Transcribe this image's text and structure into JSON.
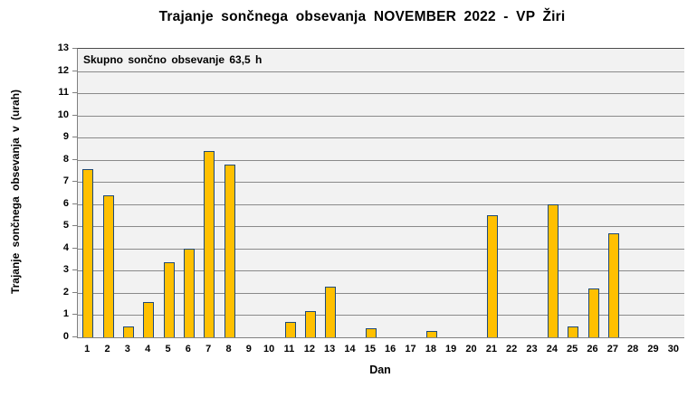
{
  "chart_data": {
    "type": "bar",
    "title": "Trajanje sončnega obsevanja NOVEMBER 2022 - VP Žiri",
    "annotation": "Skupno sončno obsevanje 63,5 h",
    "xlabel": "Dan",
    "ylabel": "Trajanje sončnega obsevanja v (urah)",
    "categories": [
      "1",
      "2",
      "3",
      "4",
      "5",
      "6",
      "7",
      "8",
      "9",
      "10",
      "11",
      "12",
      "13",
      "14",
      "15",
      "16",
      "17",
      "18",
      "19",
      "20",
      "21",
      "22",
      "23",
      "24",
      "25",
      "26",
      "27",
      "28",
      "29",
      "30"
    ],
    "values": [
      7.6,
      6.4,
      0.5,
      1.6,
      3.4,
      4.0,
      8.4,
      7.8,
      0,
      0,
      0.7,
      1.2,
      2.3,
      0,
      0.4,
      0,
      0,
      0.3,
      0,
      0,
      5.5,
      0,
      0,
      6.0,
      0.5,
      2.2,
      4.7,
      0,
      0,
      0
    ],
    "ylim": [
      0,
      13
    ],
    "ytick_step": 1,
    "grid": true,
    "legend_position": "none"
  },
  "colors": {
    "bar_fill": "#FFC000",
    "bar_border": "#1F4977",
    "plot_background": "#F2F2F2",
    "gridline": "#8A8A8A",
    "axis_line": "#808080",
    "plot_top_border": "#4D4D4D",
    "text": "#000000",
    "page_background": "#FFFFFF"
  }
}
